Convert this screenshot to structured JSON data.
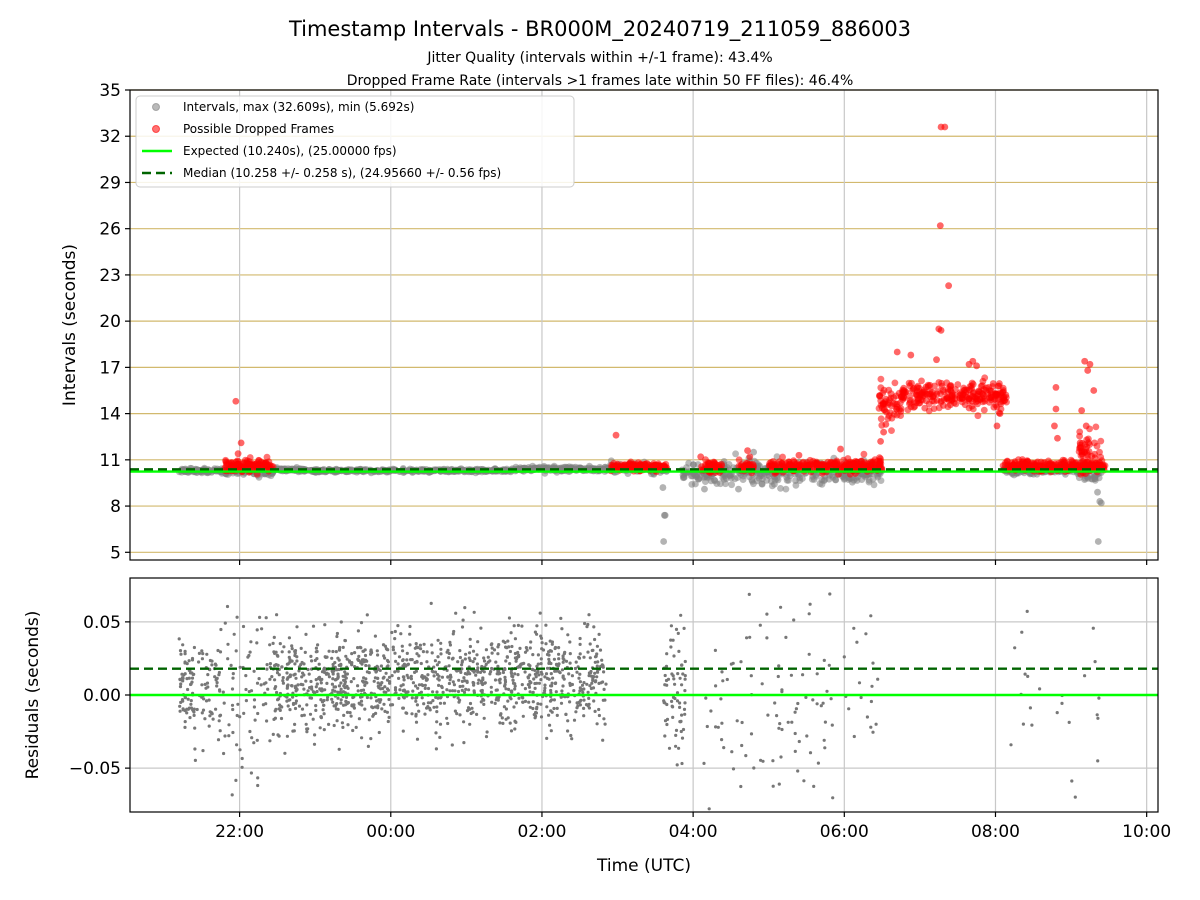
{
  "chart_data": [
    {
      "type": "scatter",
      "title": "Timestamp Intervals - BR000M_20240719_211059_886003",
      "subtitle_1": "Jitter Quality (intervals within +/-1 frame): 43.4%",
      "subtitle_2": "Dropped Frame Rate (intervals >1 frames late within 50 FF files): 46.4%",
      "ylabel": "Intervals (seconds)",
      "ylim": [
        4.5,
        35
      ],
      "xlim_hours_utc": [
        20.55,
        34.15
      ],
      "yticks": [
        "5",
        "8",
        "11",
        "14",
        "17",
        "20",
        "23",
        "26",
        "29",
        "32",
        "35"
      ],
      "ytick_values": [
        5,
        8,
        11,
        14,
        17,
        20,
        23,
        26,
        29,
        32,
        35
      ],
      "grid": "horizontal tan lines at y ticks, vertical grey lines at x ticks",
      "legend_position": "top-left",
      "legend": [
        "Intervals, max (32.609s), min (5.692s)",
        "Possible Dropped Frames",
        "Expected (10.240s), (25.00000 fps)",
        "Median (10.258 +/- 0.258 s), (24.95660 +/- 0.56 fps)"
      ],
      "expected_interval": 10.24,
      "median_interval": 10.258,
      "interval_max": 32.609,
      "interval_min": 5.692,
      "gray_clusters": [
        {
          "x_start": 21.2,
          "x_end": 21.8,
          "y_center": 10.3,
          "spread": 0.18
        },
        {
          "x_start": 21.8,
          "x_end": 22.45,
          "y_center": 10.25,
          "spread": 0.3
        },
        {
          "x_start": 22.45,
          "x_end": 22.85,
          "y_center": 10.35,
          "spread": 0.12
        },
        {
          "x_start": 22.85,
          "x_end": 25.6,
          "y_center": 10.3,
          "spread": 0.1
        },
        {
          "x_start": 25.6,
          "x_end": 26.9,
          "y_center": 10.4,
          "spread": 0.15
        },
        {
          "x_start": 26.9,
          "x_end": 27.65,
          "y_center": 10.45,
          "spread": 0.3
        },
        {
          "x_start": 27.85,
          "x_end": 28.4,
          "y_center": 10.2,
          "spread": 0.6
        },
        {
          "x_start": 28.4,
          "x_end": 30.5,
          "y_center": 10.2,
          "spread": 0.7
        },
        {
          "x_start": 32.1,
          "x_end": 33.1,
          "y_center": 10.35,
          "spread": 0.3
        },
        {
          "x_start": 33.1,
          "x_end": 33.4,
          "y_center": 10.2,
          "spread": 0.6
        }
      ],
      "gray_outliers": [
        [
          27.6,
          9.2
        ],
        [
          27.62,
          7.4
        ],
        [
          27.63,
          7.4
        ],
        [
          27.61,
          5.7
        ],
        [
          33.35,
          8.9
        ],
        [
          33.38,
          8.3
        ],
        [
          33.4,
          8.2
        ],
        [
          33.36,
          5.7
        ],
        [
          28.15,
          9.1
        ],
        [
          28.6,
          9.1
        ],
        [
          28.8,
          11.5
        ]
      ],
      "red_clusters": [
        {
          "x_start": 21.8,
          "x_end": 22.45,
          "y_center": 10.6,
          "spread": 0.4
        },
        {
          "x_start": 26.9,
          "x_end": 27.65,
          "y_center": 10.55,
          "spread": 0.25
        },
        {
          "x_start": 28.1,
          "x_end": 28.4,
          "y_center": 10.5,
          "spread": 0.4
        },
        {
          "x_start": 28.6,
          "x_end": 28.8,
          "y_center": 10.5,
          "spread": 0.4
        },
        {
          "x_start": 29.0,
          "x_end": 30.5,
          "y_center": 10.6,
          "spread": 0.4
        },
        {
          "x_start": 30.45,
          "x_end": 30.75,
          "y_center": 14.5,
          "spread": 1.2
        },
        {
          "x_start": 30.75,
          "x_end": 32.15,
          "y_center": 15.2,
          "spread": 0.9
        },
        {
          "x_start": 32.1,
          "x_end": 33.45,
          "y_center": 10.6,
          "spread": 0.35
        },
        {
          "x_start": 33.1,
          "x_end": 33.4,
          "y_center": 11.5,
          "spread": 1.4
        }
      ],
      "red_outliers": [
        [
          21.95,
          14.8
        ],
        [
          22.02,
          12.1
        ],
        [
          21.98,
          11.4
        ],
        [
          26.98,
          12.6
        ],
        [
          31.28,
          32.6
        ],
        [
          31.33,
          32.6
        ],
        [
          31.27,
          26.2
        ],
        [
          31.38,
          22.3
        ],
        [
          31.25,
          19.5
        ],
        [
          31.28,
          19.4
        ],
        [
          30.7,
          18.0
        ],
        [
          30.88,
          17.8
        ],
        [
          31.22,
          17.5
        ],
        [
          31.7,
          17.4
        ],
        [
          31.65,
          17.2
        ],
        [
          31.75,
          17.1
        ],
        [
          33.18,
          17.4
        ],
        [
          33.25,
          17.2
        ],
        [
          33.3,
          15.5
        ],
        [
          33.22,
          16.8
        ],
        [
          32.8,
          15.7
        ],
        [
          32.8,
          14.3
        ],
        [
          32.78,
          13.2
        ],
        [
          32.82,
          12.4
        ],
        [
          33.14,
          14.2
        ],
        [
          33.2,
          13.2
        ],
        [
          33.12,
          12.1
        ],
        [
          32.06,
          14.0
        ],
        [
          32.02,
          13.2
        ],
        [
          30.48,
          12.2
        ],
        [
          30.52,
          12.8
        ],
        [
          30.55,
          13.3
        ],
        [
          29.95,
          11.7
        ],
        [
          28.75,
          11.2
        ],
        [
          28.72,
          11.6
        ],
        [
          28.1,
          11.2
        ],
        [
          29.4,
          11.3
        ]
      ]
    },
    {
      "type": "scatter",
      "ylabel": "Residuals (seconds)",
      "xlabel": "Time (UTC)",
      "ylim": [
        -0.08,
        0.08
      ],
      "yticks": [
        "−0.05",
        "0.00",
        "0.05"
      ],
      "ytick_values": [
        -0.05,
        0.0,
        0.05
      ],
      "xticks": [
        "22:00",
        "00:00",
        "02:00",
        "04:00",
        "06:00",
        "08:00",
        "10:00"
      ],
      "xtick_values_hours": [
        22,
        24,
        26,
        28,
        30,
        32,
        34
      ],
      "grid": "light grey at y and x ticks",
      "expected_residual": 0.0,
      "median_residual": 0.018,
      "residual_clusters": [
        {
          "x_start": 21.2,
          "x_end": 21.4,
          "density": 1.0,
          "spread": 0.025,
          "center": 0.005
        },
        {
          "x_start": 21.4,
          "x_end": 21.75,
          "density": 0.55,
          "spread": 0.035,
          "center": 0.005
        },
        {
          "x_start": 21.75,
          "x_end": 22.4,
          "density": 0.35,
          "spread": 0.055,
          "center": 0.0
        },
        {
          "x_start": 22.4,
          "x_end": 26.85,
          "density": 0.85,
          "spread": 0.03,
          "center": 0.01
        },
        {
          "x_start": 27.6,
          "x_end": 27.9,
          "density": 0.7,
          "spread": 0.04,
          "center": 0.0
        },
        {
          "x_start": 28.1,
          "x_end": 30.45,
          "density": 0.15,
          "spread": 0.065,
          "center": 0.0
        },
        {
          "x_start": 32.15,
          "x_end": 33.4,
          "density": 0.06,
          "spread": 0.06,
          "center": 0.0
        }
      ]
    }
  ]
}
